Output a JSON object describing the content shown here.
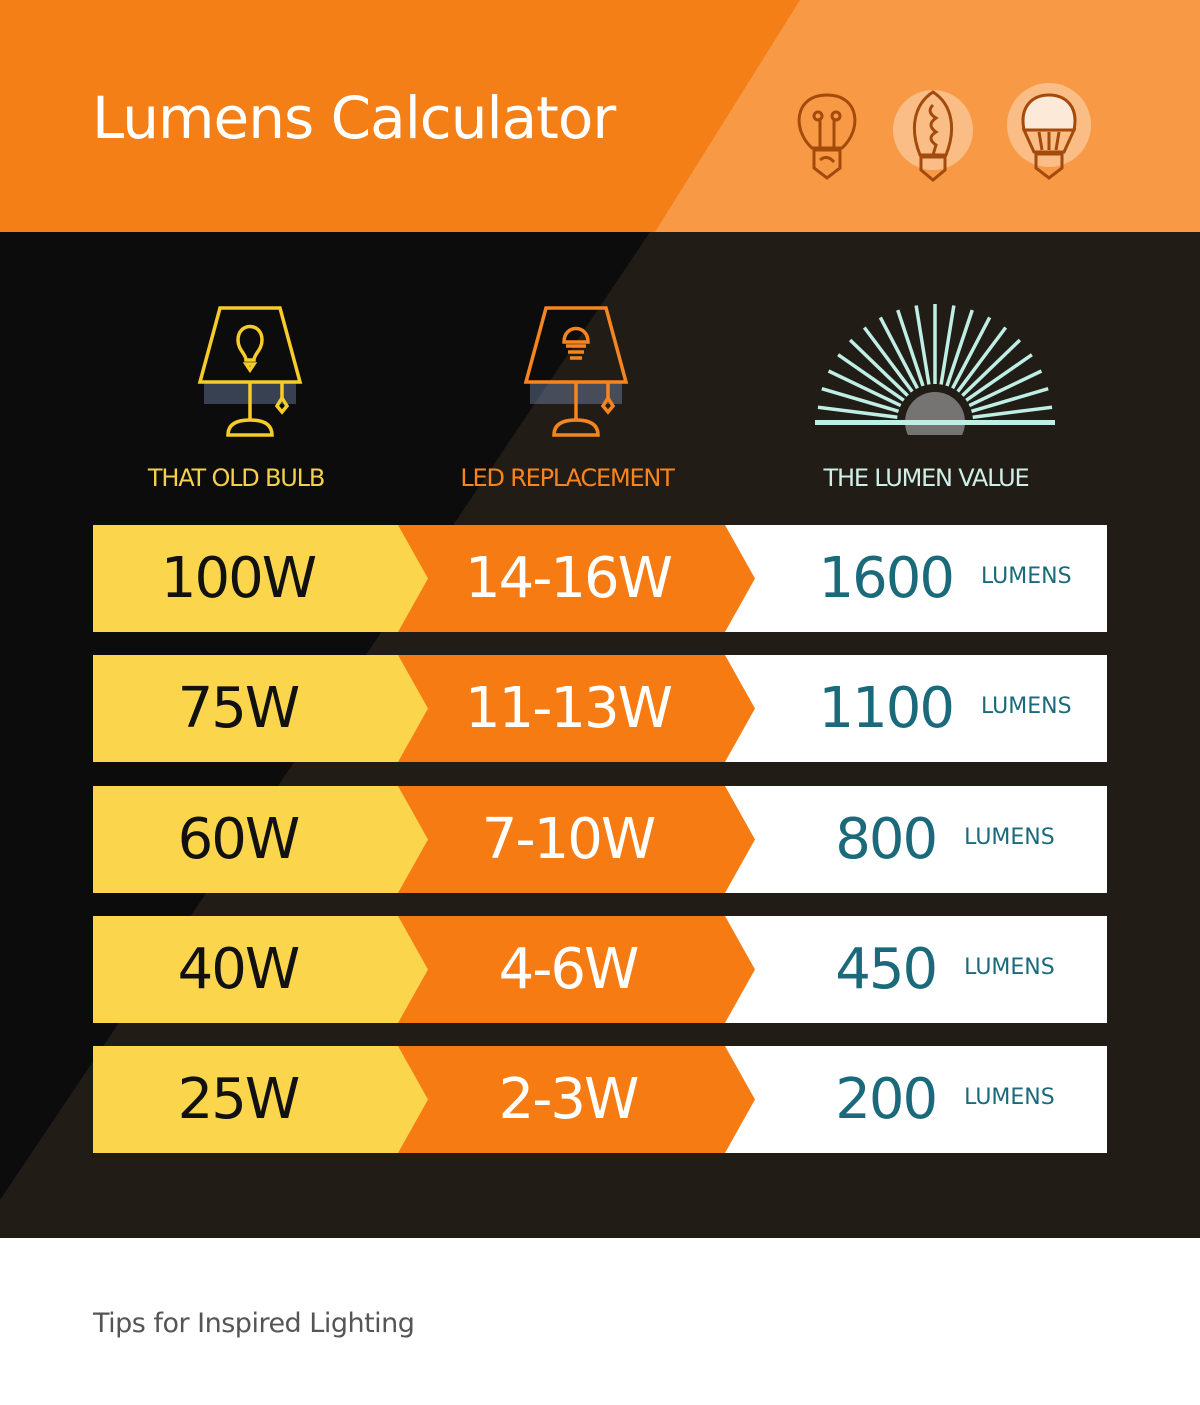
{
  "header": {
    "title": "Lumens Calculator",
    "icons": [
      "incandescent-bulb-icon",
      "edison-filament-bulb-icon",
      "led-bulb-icon"
    ]
  },
  "columns": [
    {
      "label": "THAT OLD BULB",
      "icon": "table-lamp-icon",
      "color": "#f3d14a"
    },
    {
      "label": "LED REPLACEMENT",
      "icon": "led-table-lamp-icon",
      "color": "#f7851f"
    },
    {
      "label": "THE LUMEN VALUE",
      "icon": "sunburst-icon",
      "color": "#cfeee6"
    }
  ],
  "rows": [
    {
      "old": "100W",
      "led": "14-16W",
      "lumens": "1600",
      "unit": "LUMENS"
    },
    {
      "old": "75W",
      "led": "11-13W",
      "lumens": "1100",
      "unit": "LUMENS"
    },
    {
      "old": "60W",
      "led": "7-10W",
      "lumens": "800",
      "unit": "LUMENS"
    },
    {
      "old": "40W",
      "led": "4-6W",
      "lumens": "450",
      "unit": "LUMENS"
    },
    {
      "old": "25W",
      "led": "2-3W",
      "lumens": "200",
      "unit": "LUMENS"
    }
  ],
  "colors": {
    "orange": "#f47f16",
    "light_orange": "#f89a45",
    "yellow": "#fbd64c",
    "teal": "#1b6a7c",
    "dark": "#0c0c0c"
  },
  "footer": {
    "text": "Tips for Inspired Lighting"
  }
}
